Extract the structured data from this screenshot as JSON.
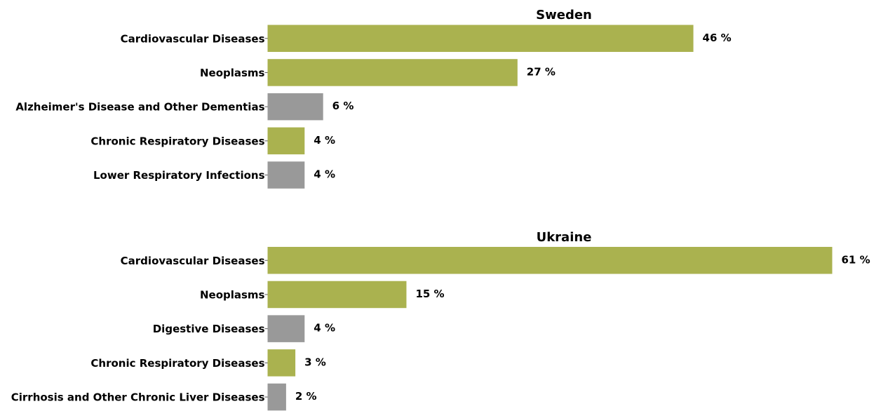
{
  "colors": {
    "highlight": "#aab24f",
    "other": "#999999"
  },
  "chart_data": [
    {
      "type": "bar",
      "orientation": "horizontal",
      "title": "Sweden",
      "categories": [
        "Cardiovascular Diseases",
        "Neoplasms",
        "Alzheimer's Disease and Other Dementias",
        "Chronic Respiratory Diseases",
        "Lower Respiratory Infections"
      ],
      "values": [
        46,
        27,
        6,
        4,
        4
      ],
      "value_labels": [
        "46 %",
        "27 %",
        "6 %",
        "4 %",
        "4 %"
      ],
      "bar_colors": [
        "highlight",
        "highlight",
        "other",
        "highlight",
        "other"
      ],
      "xlim": [
        0,
        61
      ]
    },
    {
      "type": "bar",
      "orientation": "horizontal",
      "title": "Ukraine",
      "categories": [
        "Cardiovascular Diseases",
        "Neoplasms",
        "Digestive Diseases",
        "Chronic Respiratory Diseases",
        "Cirrhosis and Other Chronic Liver Diseases"
      ],
      "values": [
        61,
        15,
        4,
        3,
        2
      ],
      "value_labels": [
        "61 %",
        "15 %",
        "4 %",
        "3 %",
        "2 %"
      ],
      "bar_colors": [
        "highlight",
        "highlight",
        "other",
        "highlight",
        "other"
      ],
      "xlim": [
        0,
        61
      ]
    }
  ]
}
